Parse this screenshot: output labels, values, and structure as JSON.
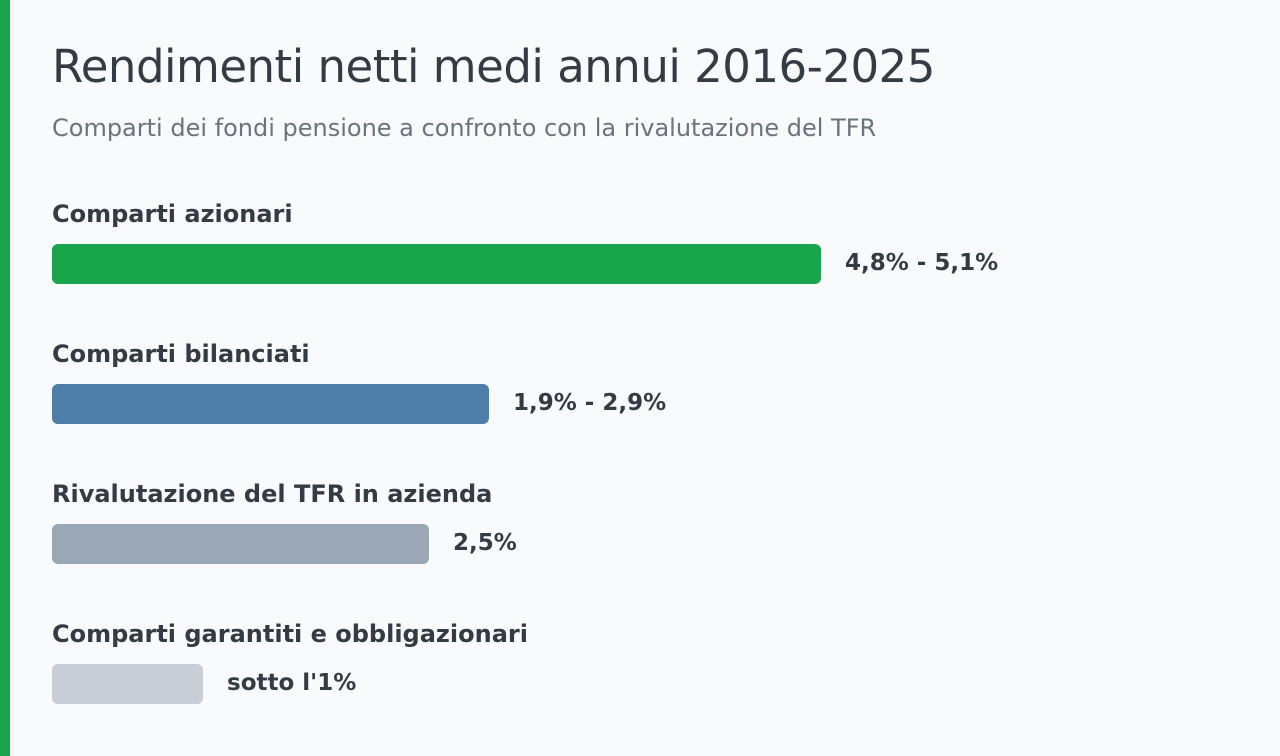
{
  "header": {
    "title": "Rendimenti netti medi annui 2016-2025",
    "subtitle": "Comparti dei fondi pensione a confronto con la rivalutazione del TFR"
  },
  "colors": {
    "accent": "#18a54b",
    "azionari": "#18a54b",
    "bilanciati": "#4c7ea8",
    "tfr": "#9aa7b4",
    "garantiti": "#c7ced6"
  },
  "chart_data": {
    "type": "bar",
    "orientation": "horizontal",
    "title": "Rendimenti netti medi annui 2016-2025",
    "subtitle": "Comparti dei fondi pensione a confronto con la rivalutazione del TFR",
    "categories": [
      "Comparti azionari",
      "Comparti bilanciati",
      "Rivalutazione del TFR in azienda",
      "Comparti garantiti e obbligazionari"
    ],
    "value_labels": [
      "4,8% - 5,1%",
      "1,9% - 2,9%",
      "2,5%",
      "sotto l'1%"
    ],
    "values": [
      5.1,
      2.9,
      2.5,
      1.0
    ],
    "colors": [
      "#18a54b",
      "#4c7ea8",
      "#9aa7b4",
      "#c7ced6"
    ],
    "xlim": [
      0,
      6.5
    ],
    "grid": false,
    "legend": "none"
  }
}
